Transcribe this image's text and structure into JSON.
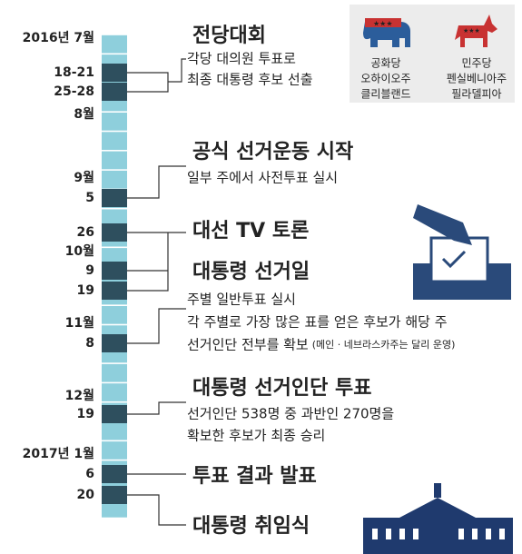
{
  "timeline": {
    "labels": [
      "2016년 7월",
      "18-21",
      "25-28",
      "8월",
      "9월",
      "5",
      "26",
      "10월",
      "9",
      "19",
      "11월",
      "8",
      "12월",
      "19",
      "2017년 1월",
      "6",
      "20"
    ]
  },
  "events": [
    {
      "title": "전당대회",
      "lines": [
        "각당 대의원 투표로",
        "최종 대통령 후보 선출"
      ]
    },
    {
      "title": "공식 선거운동 시작",
      "lines": [
        "일부 주에서 사전투표 실시"
      ]
    },
    {
      "title": "대선 TV 토론",
      "lines": []
    },
    {
      "title": "대통령 선거일",
      "lines": [
        "주별 일반투표 실시",
        "각 주별로 가장 많은 표를 얻은 후보가 해당 주",
        "선거인단 전부를 확보"
      ],
      "note": "(메인 · 네브라스카주는 달리 운영)"
    },
    {
      "title": "대통령 선거인단 투표",
      "lines": [
        "선거인단 538명 중 과반인 270명을",
        "확보한 후보가 최종 승리"
      ]
    },
    {
      "title": "투표 결과 발표",
      "lines": []
    },
    {
      "title": "대통령 취임식",
      "lines": []
    }
  ],
  "parties": [
    {
      "name": "공화당",
      "state": "오하이오주",
      "city": "클리블랜드"
    },
    {
      "name": "민주당",
      "state": "펜실베니아주",
      "city": "필라델피아"
    }
  ]
}
